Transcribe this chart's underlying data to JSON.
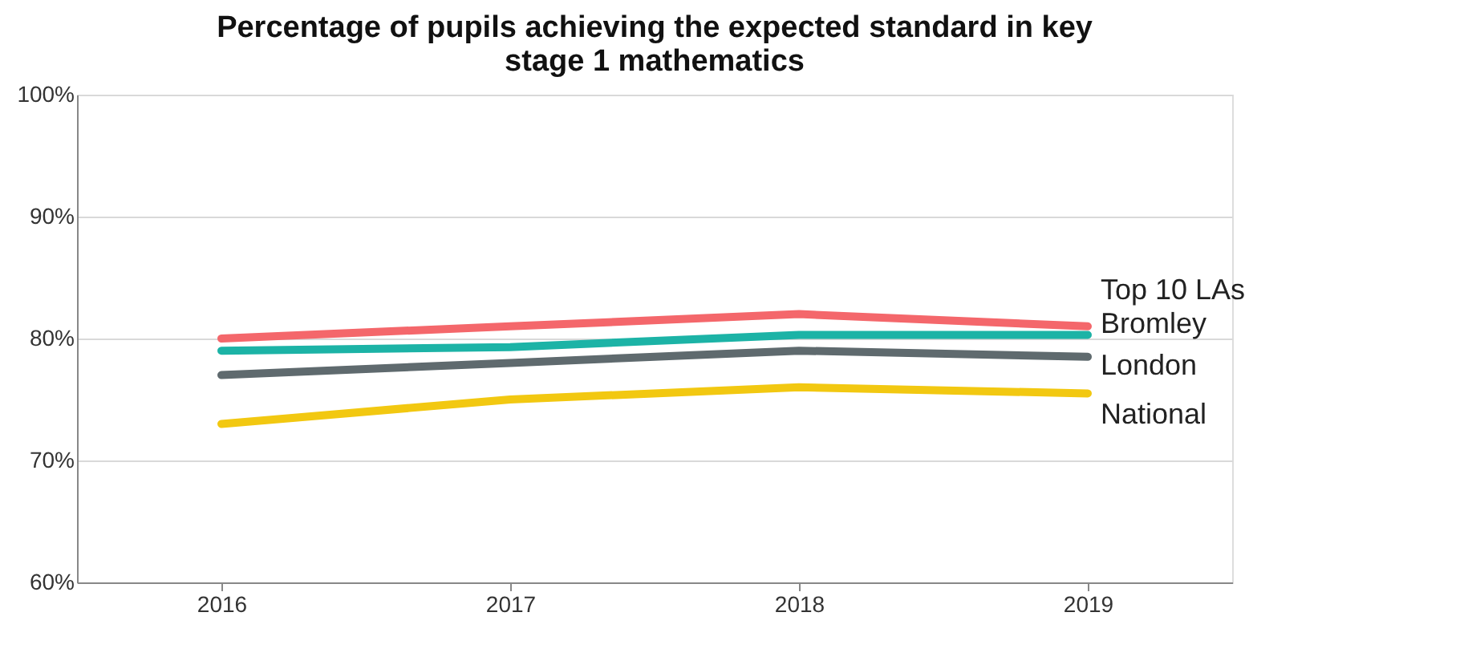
{
  "chart_data": {
    "type": "line",
    "title": "Percentage of pupils achieving the expected standard in key stage 1 mathematics",
    "categories": [
      "2016",
      "2017",
      "2018",
      "2019"
    ],
    "series": [
      {
        "name": "Top 10 LAs",
        "color": "#f4676b",
        "values": [
          80,
          81,
          82,
          81
        ]
      },
      {
        "name": "Bromley",
        "color": "#1cb3a6",
        "values": [
          79,
          79.3,
          80.3,
          80.3
        ]
      },
      {
        "name": "London",
        "color": "#5f6a6e",
        "values": [
          77,
          78,
          79,
          78.5
        ]
      },
      {
        "name": "National",
        "color": "#f2c811",
        "values": [
          73,
          75,
          76,
          75.5
        ]
      }
    ],
    "ylim": [
      60,
      100
    ],
    "yticks": [
      {
        "value": 60,
        "label": "60%"
      },
      {
        "value": 70,
        "label": "70%"
      },
      {
        "value": 80,
        "label": "80%"
      },
      {
        "value": 90,
        "label": "90%"
      },
      {
        "value": 100,
        "label": "100%"
      }
    ],
    "grid": "y",
    "legend": false,
    "marker": "none",
    "line_style": "solid"
  }
}
